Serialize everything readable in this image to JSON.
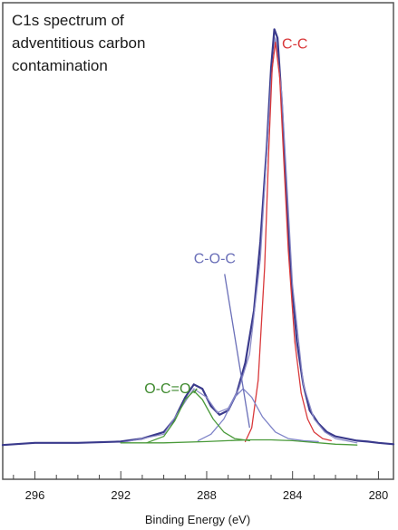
{
  "chart_data": {
    "type": "line",
    "title_lines": [
      "C1s spectrum of",
      "adventitious carbon",
      "contamination"
    ],
    "xlabel": "Binding Energy (eV)",
    "ylabel": "",
    "xlim": [
      297.5,
      279.3
    ],
    "ylim": [
      0,
      100
    ],
    "x_reversed": true,
    "xticks_major": [
      296,
      292,
      288,
      284,
      280
    ],
    "xticks_minor_step": 1,
    "grid": false,
    "peaks": [
      {
        "label": "C-C",
        "center": 284.8,
        "height": 95,
        "color": "#d9383a"
      },
      {
        "label": "C-O-C",
        "center": 286.3,
        "height": 14,
        "color": "#7f84c8"
      },
      {
        "label": "O-C=O",
        "center": 288.6,
        "height": 14,
        "color": "#4a9a3a"
      }
    ],
    "series": [
      {
        "name": "",
        "role": "envelope",
        "color": "#3a3a8c",
        "x": [
          297.5,
          296,
          294,
          292,
          291,
          290,
          289.5,
          289,
          288.6,
          288.2,
          287.8,
          287.4,
          287,
          286.6,
          286.2,
          285.8,
          285.5,
          285.2,
          285,
          284.85,
          284.7,
          284.5,
          284.3,
          284.1,
          283.8,
          283.5,
          283.2,
          282.8,
          282.4,
          282,
          281.5,
          281,
          280.5,
          280,
          279.3
        ],
        "y": [
          1,
          1.5,
          1.5,
          1.8,
          2.5,
          4,
          7,
          12,
          15,
          14,
          10,
          8,
          9,
          13,
          20,
          32,
          48,
          70,
          88,
          97,
          95,
          80,
          60,
          42,
          25,
          15,
          9,
          6,
          4,
          3,
          2.5,
          2,
          1.8,
          1.5,
          1.2
        ]
      },
      {
        "name": "",
        "role": "fit-envelope",
        "color": "#8c8cc8",
        "x": [
          292,
          290,
          289,
          288.6,
          288,
          287.5,
          287,
          286.5,
          286,
          285.5,
          285,
          284.8,
          284.5,
          284,
          283.5,
          283,
          282.5,
          282,
          281
        ],
        "y": [
          1.5,
          3.5,
          11,
          14,
          12,
          8.5,
          9.5,
          14,
          22,
          44,
          85,
          95,
          82,
          38,
          15,
          7,
          4,
          2.5,
          1.5
        ]
      },
      {
        "name": "",
        "role": "component-C-C",
        "color": "#d9383a",
        "x": [
          286.2,
          285.9,
          285.6,
          285.3,
          285.1,
          284.95,
          284.8,
          284.6,
          284.4,
          284.2,
          283.9,
          283.6,
          283.3,
          283,
          282.6,
          282.2
        ],
        "y": [
          1.8,
          5,
          16,
          42,
          70,
          88,
          94,
          86,
          66,
          46,
          25,
          13,
          7,
          4,
          2.5,
          2
        ]
      },
      {
        "name": "",
        "role": "component-C-O-C",
        "color": "#7f84c8",
        "x": [
          288.4,
          287.8,
          287.2,
          286.7,
          286.3,
          285.9,
          285.4,
          284.8,
          284.2,
          283.5,
          282.8
        ],
        "y": [
          2,
          3.5,
          7,
          12,
          14,
          12,
          7.5,
          4,
          2.5,
          2,
          1.8
        ]
      },
      {
        "name": "",
        "role": "component-O-C=O",
        "color": "#4a9a3a",
        "x": [
          290.8,
          290,
          289.5,
          289,
          288.6,
          288.2,
          287.7,
          287.2,
          286.7,
          286
        ],
        "y": [
          1.5,
          3,
          6.5,
          11.5,
          13.5,
          11.5,
          7,
          4,
          2.5,
          2
        ]
      },
      {
        "name": "",
        "role": "baseline",
        "color": "#4a9a3a",
        "x": [
          292,
          290,
          288,
          287,
          286,
          285,
          284.5,
          284,
          283.5,
          283,
          282.5,
          282,
          281.5,
          281
        ],
        "y": [
          1.5,
          1.5,
          1.8,
          2,
          2.2,
          2.2,
          2.1,
          2,
          1.8,
          1.6,
          1.4,
          1.2,
          1.1,
          1
        ]
      }
    ],
    "annotations": [
      {
        "text": "C-C",
        "color": "#d9383a",
        "at_x": 285.0,
        "at_y": 94.5
      },
      {
        "text": "C-O-C",
        "color": "#6a6fb8",
        "at_x": 286.0,
        "at_y": 5,
        "text_x": 288.6,
        "text_y": 43
      },
      {
        "text": "O-C=O",
        "color": "#3f8a2f",
        "at_x": 288.6,
        "at_y": 13,
        "text_x": 290.9,
        "text_y": 13
      }
    ]
  }
}
